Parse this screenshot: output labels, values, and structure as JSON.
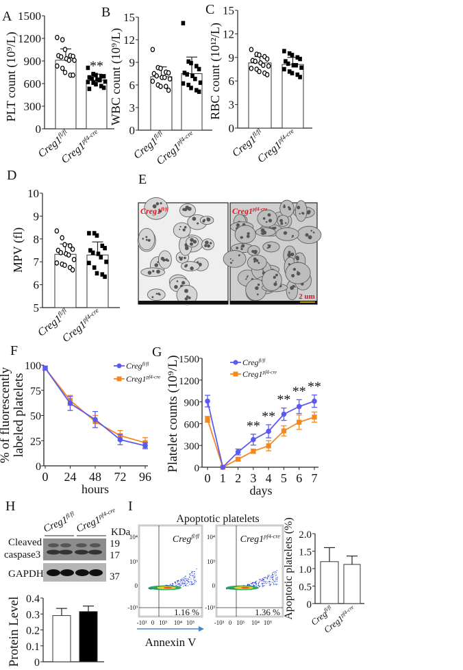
{
  "colors": {
    "series_flfl": "#5a5af0",
    "series_cre": "#f5871f",
    "axis": "#222222",
    "tem_label": "#e0141e",
    "scale_bar": "#e6c000",
    "arrow": "#4a86c5"
  },
  "groups": {
    "flfl": {
      "base": "Creg1",
      "sup": "fl/fl"
    },
    "cre": {
      "base": "Creg1",
      "sup": "pf4-cre"
    },
    "flfl_short": {
      "base": "Creg",
      "sup": "fl/fl"
    }
  },
  "chart_data": [
    {
      "panel": "A",
      "type": "bar",
      "ylabel": "PLT count (10⁹/L)",
      "ylim": [
        0,
        1500
      ],
      "yticks": [
        "0",
        "300",
        "600",
        "900",
        "1200",
        "1500"
      ],
      "categories": [
        "flfl",
        "cre"
      ],
      "values": [
        910,
        645
      ],
      "sd": [
        150,
        80
      ],
      "significance": [
        "",
        "**"
      ],
      "points": [
        [
          1212,
          1182,
          1052,
          970,
          961,
          970,
          955,
          930,
          909,
          909,
          833,
          803,
          748,
          712,
          712
        ],
        [
          809,
          727,
          712,
          697,
          697,
          682,
          667,
          652,
          645,
          627,
          621,
          612,
          591,
          567,
          545,
          530
        ]
      ],
      "markers": [
        "open-circle",
        "filled-square"
      ]
    },
    {
      "panel": "B",
      "type": "bar",
      "ylabel": "WBC count (10⁹/L)",
      "ylim": [
        0,
        15
      ],
      "yticks": [
        "0",
        "3",
        "6",
        "9",
        "12",
        "15"
      ],
      "categories": [
        "flfl",
        "cre"
      ],
      "values": [
        7.1,
        7.5
      ],
      "sd": [
        1.3,
        2.2
      ],
      "significance": [
        "",
        ""
      ],
      "points": [
        [
          10.7,
          8.3,
          8.2,
          7.7,
          7.6,
          7.5,
          7.2,
          7.0,
          7.0,
          6.8,
          6.5,
          6.0,
          5.8,
          5.8,
          5.3
        ],
        [
          14.2,
          9.1,
          8.9,
          8.5,
          8.1,
          7.6,
          7.4,
          7.2,
          6.8,
          6.3,
          6.2,
          6.0,
          5.6,
          5.3,
          5.1
        ]
      ],
      "markers": [
        "open-circle",
        "filled-square"
      ]
    },
    {
      "panel": "C",
      "type": "bar",
      "ylabel": "RBC count (10¹²/L)",
      "ylim": [
        0,
        15
      ],
      "yticks": [
        "0",
        "3",
        "6",
        "9",
        "12",
        "15"
      ],
      "categories": [
        "flfl",
        "cre"
      ],
      "values": [
        8.3,
        8.1
      ],
      "sd": [
        0.8,
        0.9
      ],
      "significance": [
        "",
        ""
      ],
      "points": [
        [
          10.0,
          9.4,
          9.3,
          9.1,
          8.8,
          8.6,
          8.5,
          8.3,
          8.0,
          7.9,
          7.6,
          7.5,
          7.2,
          7.0,
          6.8
        ],
        [
          9.8,
          9.5,
          9.3,
          9.0,
          8.8,
          8.5,
          8.2,
          8.0,
          8.0,
          7.7,
          7.5,
          7.2,
          7.0,
          6.8,
          6.5
        ]
      ],
      "markers": [
        "open-circle",
        "filled-square"
      ]
    },
    {
      "panel": "D",
      "type": "bar",
      "ylabel": "MPV (fl)",
      "ylim": [
        5,
        10
      ],
      "yticks": [
        "5",
        "6",
        "7",
        "8",
        "9",
        "10"
      ],
      "categories": [
        "flfl",
        "cre"
      ],
      "values": [
        7.33,
        7.3
      ],
      "sd": [
        0.45,
        0.57
      ],
      "significance": [
        "",
        ""
      ],
      "points": [
        [
          8.35,
          8.05,
          7.75,
          7.7,
          7.55,
          7.5,
          7.4,
          7.35,
          7.3,
          7.1,
          6.95,
          6.9,
          6.85,
          6.75,
          6.65
        ],
        [
          8.25,
          8.25,
          8.15,
          7.7,
          7.6,
          7.5,
          7.4,
          7.35,
          7.2,
          7.0,
          6.95,
          6.75,
          6.5,
          6.45,
          6.35
        ]
      ],
      "markers": [
        "open-circle",
        "filled-square"
      ]
    },
    {
      "panel": "F",
      "type": "line",
      "ylabel": [
        "% of fluorescently",
        "labeled platelets"
      ],
      "xlabel": "hours",
      "x": [
        0,
        24,
        48,
        72,
        96
      ],
      "xlim": [
        0,
        96
      ],
      "ylim": [
        0,
        100
      ],
      "xticks": [
        "0",
        "24",
        "48",
        "72",
        "96"
      ],
      "yticks": [
        "0",
        "25",
        "50",
        "75",
        "100"
      ],
      "legend": "top-right",
      "series": [
        {
          "name": {
            "base": "Creg",
            "sup": "fl/fl"
          },
          "values": [
            97,
            62,
            46,
            26,
            20
          ],
          "err": [
            2,
            7,
            8,
            5,
            3
          ],
          "marker": "circle",
          "stars": [
            "",
            "",
            "",
            "",
            ""
          ]
        },
        {
          "name": {
            "base": "Creg1",
            "sup": "pf4-cre"
          },
          "values": [
            97,
            65,
            44,
            30,
            23
          ],
          "err": [
            2,
            5,
            6,
            5,
            5
          ],
          "marker": "square"
        }
      ]
    },
    {
      "panel": "G",
      "type": "line",
      "ylabel": [
        "Platelet counts (10⁹/L)"
      ],
      "xlabel": "days",
      "x": [
        0,
        1,
        2,
        3,
        4,
        5,
        6,
        7
      ],
      "xlim": [
        0,
        7
      ],
      "ylim": [
        0,
        1500
      ],
      "xticks": [
        "0",
        "1",
        "2",
        "3",
        "4",
        "5",
        "6",
        "7"
      ],
      "yticks": [
        "0",
        "300",
        "600",
        "900",
        "1200",
        "1500"
      ],
      "legend": "top",
      "series": [
        {
          "name": {
            "base": "Creg",
            "sup": "fl/fl"
          },
          "values": [
            910,
            0,
            210,
            380,
            495,
            730,
            835,
            910
          ],
          "err": [
            80,
            0,
            40,
            75,
            90,
            85,
            95,
            85
          ],
          "marker": "circle",
          "stars": [
            "",
            "",
            "",
            "**",
            "**",
            "**",
            "**",
            "**"
          ]
        },
        {
          "name": {
            "base": "Creg1",
            "sup": "pf4-cre"
          },
          "values": [
            660,
            0,
            110,
            220,
            295,
            500,
            620,
            690
          ],
          "err": [
            40,
            0,
            20,
            30,
            70,
            70,
            100,
            70
          ],
          "marker": "square"
        }
      ]
    },
    {
      "panel": "H",
      "type": "bar",
      "ylabel": "Protein Level",
      "ylim": [
        0,
        0.4
      ],
      "yticks": [
        "0",
        "0.1",
        "0.2",
        "0.3",
        "0.4"
      ],
      "values": [
        0.29,
        0.315
      ],
      "sd": [
        0.045,
        0.035
      ],
      "fills": [
        "#ffffff",
        "#000000"
      ]
    },
    {
      "panel": "I",
      "type": "bar",
      "ylabel": "Apoptotic platelets (%)",
      "ylim": [
        0,
        2.0
      ],
      "yticks": [
        "0",
        "0.5",
        "1.0",
        "1.5",
        "2.0"
      ],
      "categories": [
        "flfl_short",
        "cre"
      ],
      "values": [
        1.2,
        1.12
      ],
      "sd": [
        0.4,
        0.24
      ]
    }
  ],
  "panel_E": {
    "letter": "E",
    "images": [
      {
        "label": {
          "base": "Creg1",
          "sup": "fl/fl"
        }
      },
      {
        "label": {
          "base": "Creg1",
          "sup": "pf4-cre"
        },
        "scale_bar": "2 um"
      }
    ]
  },
  "panel_H_blot": {
    "letter": "H",
    "unit": "KDa",
    "rows": [
      {
        "label": [
          "Cleaved",
          "caspase3"
        ],
        "sizes": [
          "19",
          "17"
        ]
      },
      {
        "label": [
          "GAPDH"
        ],
        "sizes": [
          "37"
        ]
      }
    ]
  },
  "panel_I_flow": {
    "letter": "I",
    "title": "Apoptotic platelets",
    "xaxis_label": "Annexin V",
    "xticks": [
      "-10³",
      "0",
      "10³",
      "10⁴",
      "10⁵"
    ],
    "yticks": [
      "10⁴",
      "10³",
      "0",
      "-10³"
    ],
    "plots": [
      {
        "label": {
          "base": "Creg",
          "sup": "fl/fl"
        },
        "percent": "1.16 %"
      },
      {
        "label": {
          "base": "Creg1",
          "sup": "pf4-cre"
        },
        "percent": "1.36 %"
      }
    ]
  }
}
